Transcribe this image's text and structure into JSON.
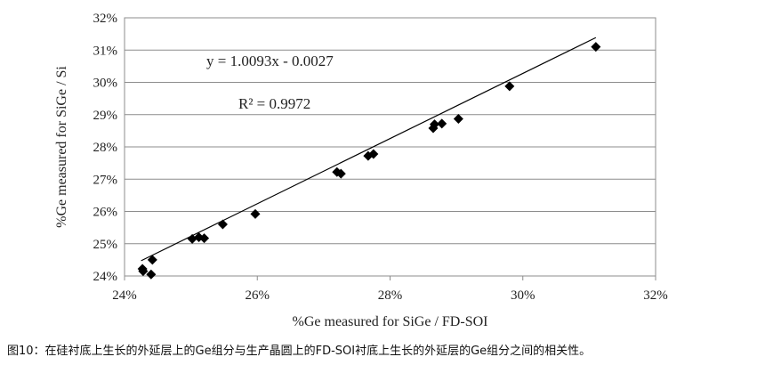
{
  "chart_data": {
    "type": "scatter",
    "xlabel": "%Ge measured for SiGe / FD-SOI",
    "ylabel": "%Ge measured for SiGe / Si",
    "xlim": [
      24,
      32
    ],
    "ylim": [
      24,
      32
    ],
    "x_ticks": [
      "24%",
      "26%",
      "28%",
      "30%",
      "32%"
    ],
    "y_ticks": [
      "24%",
      "25%",
      "26%",
      "27%",
      "28%",
      "29%",
      "30%",
      "31%",
      "32%"
    ],
    "grid": "horizontal",
    "marker": "diamond",
    "marker_color": "#000000",
    "points": [
      {
        "x": 24.27,
        "y": 24.22
      },
      {
        "x": 24.28,
        "y": 24.15
      },
      {
        "x": 24.4,
        "y": 24.05
      },
      {
        "x": 24.42,
        "y": 24.5
      },
      {
        "x": 25.02,
        "y": 25.15
      },
      {
        "x": 25.12,
        "y": 25.2
      },
      {
        "x": 25.2,
        "y": 25.17
      },
      {
        "x": 25.48,
        "y": 25.6
      },
      {
        "x": 25.97,
        "y": 25.92
      },
      {
        "x": 27.2,
        "y": 27.22
      },
      {
        "x": 27.26,
        "y": 27.17
      },
      {
        "x": 27.67,
        "y": 27.72
      },
      {
        "x": 27.75,
        "y": 27.78
      },
      {
        "x": 28.65,
        "y": 28.58
      },
      {
        "x": 28.67,
        "y": 28.7
      },
      {
        "x": 28.78,
        "y": 28.72
      },
      {
        "x": 29.03,
        "y": 28.87
      },
      {
        "x": 29.8,
        "y": 29.88
      },
      {
        "x": 31.1,
        "y": 31.1
      }
    ],
    "trendline": {
      "slope": 1.0093,
      "intercept": -0.0027,
      "from_x": 24.25,
      "to_x": 31.1
    },
    "equation_label": "y = 1.0093x - 0.0027",
    "r2_label": "R² = 0.9972"
  },
  "caption": "图10：在硅衬底上生长的外延层上的Ge组分与生产晶圆上的FD-SOI衬底上生长的外延层的Ge组分之间的相关性。"
}
